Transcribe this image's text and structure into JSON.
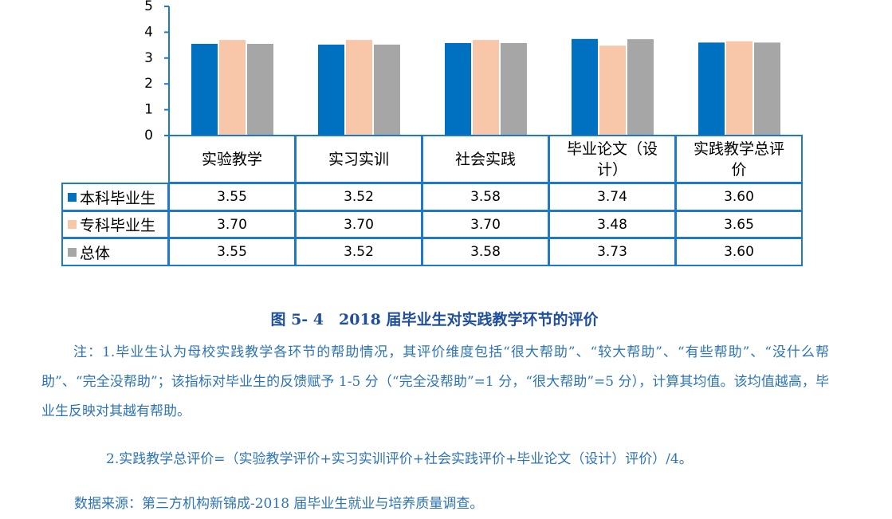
{
  "chart_data": {
    "type": "bar",
    "categories": [
      "实验教学",
      "实习实训",
      "社会实践",
      "毕业论文（设计）",
      "实践教学总评价"
    ],
    "series": [
      {
        "name": "本科毕业生",
        "color": "#0070c0",
        "values": [
          3.55,
          3.52,
          3.58,
          3.74,
          3.6
        ],
        "value_labels": [
          "3.55",
          "3.52",
          "3.58",
          "3.74",
          "3.60"
        ]
      },
      {
        "name": "专科毕业生",
        "color": "#f8c7a9",
        "values": [
          3.7,
          3.7,
          3.7,
          3.48,
          3.65
        ],
        "value_labels": [
          "3.70",
          "3.70",
          "3.70",
          "3.48",
          "3.65"
        ]
      },
      {
        "name": "总体",
        "color": "#a6a6a6",
        "values": [
          3.55,
          3.52,
          3.58,
          3.73,
          3.6
        ],
        "value_labels": [
          "3.55",
          "3.52",
          "3.58",
          "3.73",
          "3.60"
        ]
      }
    ],
    "ylim": [
      0,
      5
    ],
    "yticks": [
      0,
      1,
      2,
      3,
      4,
      5
    ]
  },
  "caption": "图 5- 4　2018 届毕业生对实践教学环节的评价",
  "notes": [
    "注：1.毕业生认为母校实践教学各环节的帮助情况，其评价维度包括“很大帮助”、“较大帮助”、“有些帮助”、“没什么帮助”、“完全没帮助”；该指标对毕业生的反馈赋予 1-5 分（“完全没帮助”=1 分，“很大帮助”=5 分），计算其均值。该均值越高，毕业生反映对其越有帮助。",
    "2.实践教学总评价=（实验教学评价+实习实训评价+社会实践评价+毕业论文（设计）评价）/4。",
    "数据来源：第三方机构新锦成-2018 届毕业生就业与培养质量调查。"
  ]
}
